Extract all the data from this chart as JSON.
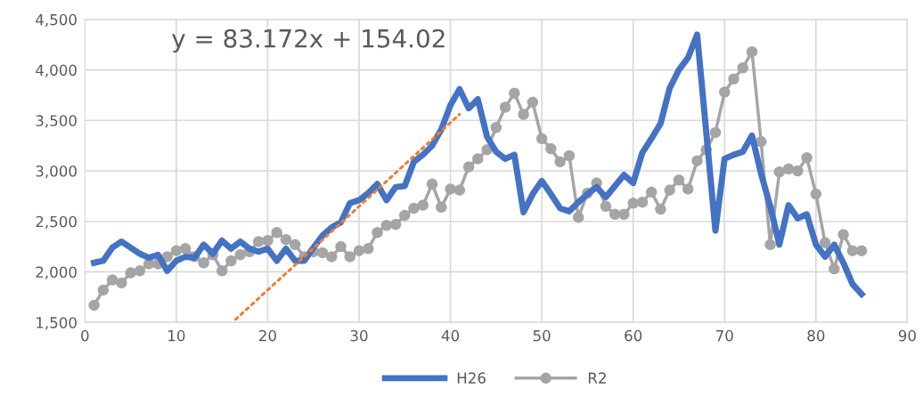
{
  "chart_data": {
    "type": "line",
    "x": [
      1,
      2,
      3,
      4,
      5,
      6,
      7,
      8,
      9,
      10,
      11,
      12,
      13,
      14,
      15,
      16,
      17,
      18,
      19,
      20,
      21,
      22,
      23,
      24,
      25,
      26,
      27,
      28,
      29,
      30,
      31,
      32,
      33,
      34,
      35,
      36,
      37,
      38,
      39,
      40,
      41,
      42,
      43,
      44,
      45,
      46,
      47,
      48,
      49,
      50,
      51,
      52,
      53,
      54,
      55,
      56,
      57,
      58,
      59,
      60,
      61,
      62,
      63,
      64,
      65,
      66,
      67,
      68,
      69,
      70,
      71,
      72,
      73,
      74,
      75,
      76,
      77,
      78,
      79,
      80,
      81,
      82,
      83,
      84,
      85
    ],
    "series": [
      {
        "name": "H26",
        "color": "#4472c4",
        "marker": "none",
        "values": [
          2090,
          2110,
          2240,
          2300,
          2240,
          2180,
          2140,
          2170,
          2010,
          2110,
          2150,
          2140,
          2270,
          2180,
          2310,
          2230,
          2300,
          2230,
          2200,
          2230,
          2110,
          2230,
          2110,
          2110,
          2240,
          2360,
          2440,
          2490,
          2680,
          2710,
          2780,
          2870,
          2710,
          2840,
          2850,
          3090,
          3160,
          3250,
          3410,
          3650,
          3810,
          3620,
          3710,
          3340,
          3190,
          3120,
          3160,
          2590,
          2770,
          2900,
          2770,
          2630,
          2600,
          2690,
          2770,
          2840,
          2740,
          2850,
          2960,
          2880,
          3180,
          3320,
          3470,
          3820,
          4000,
          4120,
          4350,
          3380,
          2410,
          3120,
          3160,
          3190,
          3350,
          2970,
          2650,
          2270,
          2660,
          2530,
          2570,
          2270,
          2150,
          2270,
          2090,
          1880,
          1780
        ]
      },
      {
        "name": "R2",
        "color": "#a5a5a5",
        "marker": "circle",
        "values": [
          1670,
          1820,
          1920,
          1890,
          1990,
          2010,
          2080,
          2080,
          2150,
          2210,
          2230,
          2150,
          2090,
          2170,
          2010,
          2110,
          2170,
          2200,
          2300,
          2310,
          2390,
          2320,
          2270,
          2150,
          2200,
          2190,
          2150,
          2250,
          2150,
          2210,
          2230,
          2390,
          2460,
          2470,
          2560,
          2630,
          2660,
          2870,
          2640,
          2820,
          2810,
          3040,
          3120,
          3210,
          3430,
          3630,
          3770,
          3560,
          3680,
          3320,
          3220,
          3090,
          3150,
          2540,
          2780,
          2880,
          2650,
          2570,
          2570,
          2680,
          2690,
          2790,
          2620,
          2810,
          2910,
          2820,
          3100,
          3210,
          3380,
          3780,
          3910,
          4020,
          4180,
          3290,
          2270,
          2990,
          3020,
          3000,
          3130,
          2770,
          2290,
          2030,
          2370,
          2210,
          2210
        ]
      },
      {
        "type": "line",
        "color": "#ed7d31",
        "line_style": "dotted",
        "marker": "none",
        "x": [
          16.5,
          41
        ],
        "values": [
          1530,
          3560
        ]
      }
    ],
    "annotations": [
      "y = 83.172x + 154.02"
    ],
    "xlim": [
      0,
      90
    ],
    "xticks": [
      0,
      10,
      20,
      30,
      40,
      50,
      60,
      70,
      80,
      90
    ],
    "ylim": [
      1500,
      4500
    ],
    "yticks": [
      {
        "value": 1500,
        "label": "1,500"
      },
      {
        "value": 2000,
        "label": "2,000"
      },
      {
        "value": 2500,
        "label": "2,500"
      },
      {
        "value": 3000,
        "label": "3,000"
      },
      {
        "value": 3500,
        "label": "3,500"
      },
      {
        "value": 4000,
        "label": "4,000"
      },
      {
        "value": 4500,
        "label": "4,500"
      }
    ],
    "grid": true,
    "legend": "bottom"
  }
}
